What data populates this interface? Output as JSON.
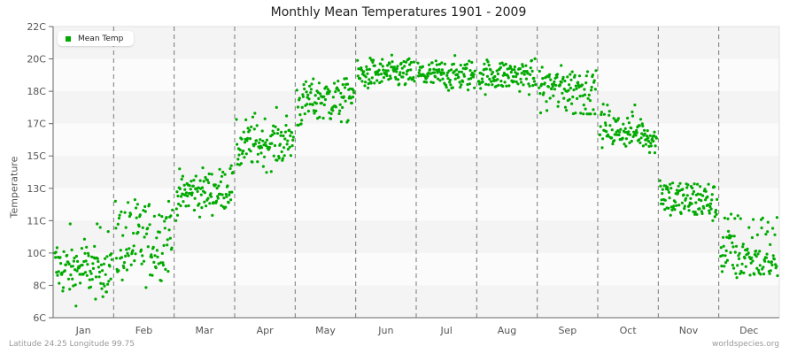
{
  "header": {
    "title": "Monthly Mean Temperatures 1901 - 2009"
  },
  "legend": {
    "label": "Mean Temp",
    "color": "#00aa00"
  },
  "footer": {
    "location": "Latitude 24.25 Longitude 99.75",
    "source": "worldspecies.org"
  },
  "chart_data": {
    "type": "scatter",
    "title": "Monthly Mean Temperatures 1901 - 2009",
    "xlabel": "",
    "ylabel": "Temperature",
    "categories": [
      "Jan",
      "Feb",
      "Mar",
      "Apr",
      "May",
      "Jun",
      "Jul",
      "Aug",
      "Sep",
      "Oct",
      "Nov",
      "Dec"
    ],
    "y_ticks": [
      "22C",
      "20C",
      "18C",
      "17C",
      "15C",
      "13C",
      "11C",
      "10C",
      "8C",
      "6C"
    ],
    "ylim": [
      6,
      22
    ],
    "grid": {
      "horizontal_bands": true,
      "vertical_dashed_month_separators": true
    },
    "legend_position": "top-left",
    "series": [
      {
        "name": "Mean Temp",
        "color": "#00aa00",
        "points_per_month": 109,
        "approx_monthly_mean": [
          9.0,
          10.3,
          12.8,
          15.8,
          17.8,
          19.1,
          19.0,
          19.0,
          18.3,
          16.5,
          12.3,
          9.8
        ],
        "approx_monthly_min": [
          6.6,
          7.6,
          11.0,
          13.9,
          16.9,
          18.0,
          17.9,
          17.9,
          17.3,
          15.2,
          11.0,
          7.4
        ],
        "approx_monthly_max": [
          10.9,
          12.4,
          14.4,
          17.5,
          19.0,
          20.3,
          20.3,
          20.3,
          20.2,
          17.6,
          14.3,
          11.4
        ]
      }
    ]
  }
}
